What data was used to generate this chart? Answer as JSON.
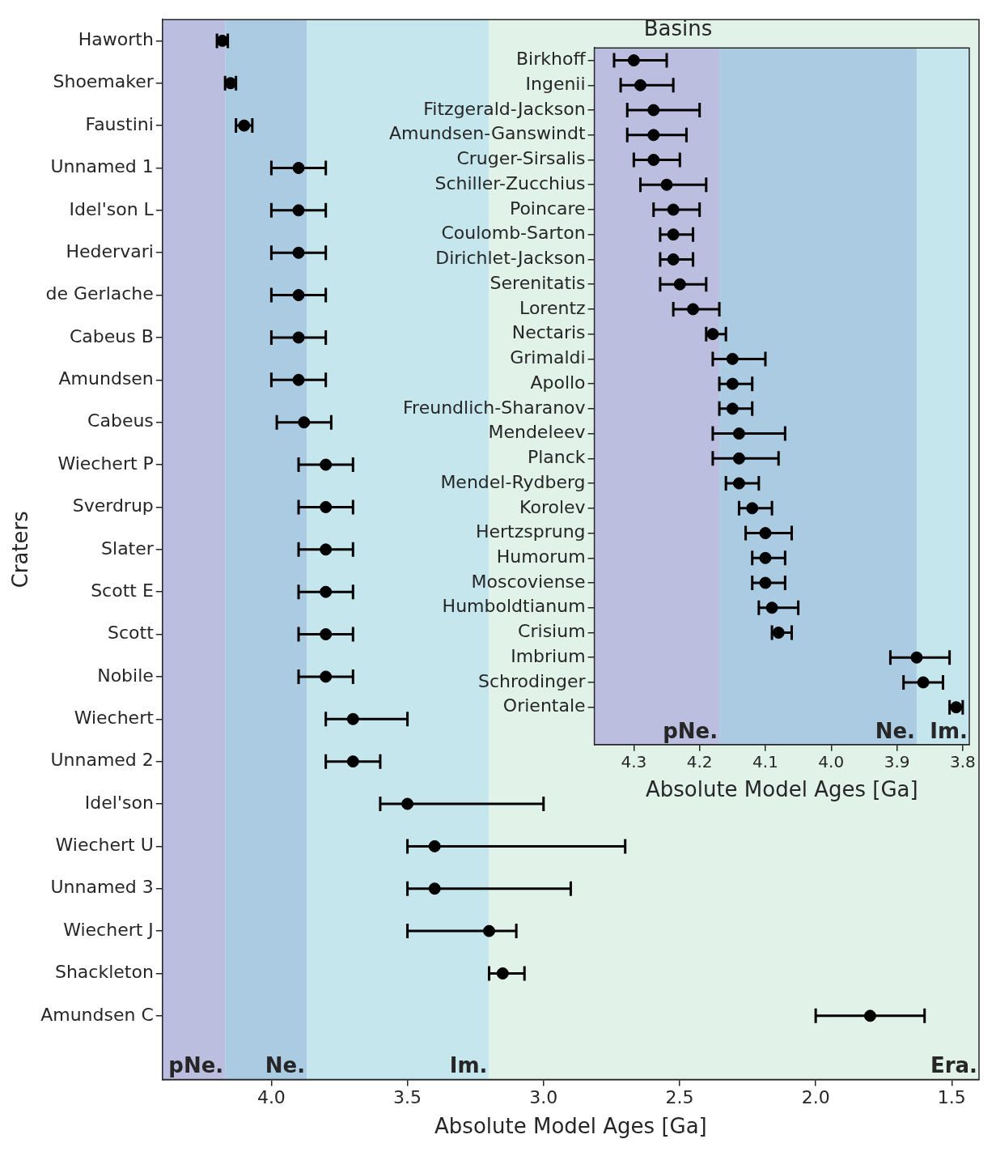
{
  "chart_data": [
    {
      "type": "scatter",
      "orientation": "horizontal",
      "xlabel": "Absolute Model Ages [Ga]",
      "ylabel": "Craters",
      "xlim": [
        4.4,
        1.4
      ],
      "xticks": [
        {
          "value": 4,
          "label": "4.0"
        },
        3.5,
        {
          "value": 3,
          "label": "3.0"
        },
        2.5,
        {
          "value": 2,
          "label": "2.0"
        },
        1.5
      ],
      "categories": [
        "Haworth",
        "Shoemaker",
        "Faustini",
        "Unnamed 1",
        "Idel'son L",
        "Hedervari",
        "de Gerlache",
        "Cabeus B",
        "Amundsen",
        "Cabeus",
        "Wiechert P",
        "Sverdrup",
        "Slater",
        "Scott E",
        "Scott",
        "Nobile",
        "Wiechert",
        "Unnamed 2",
        "Idel'son",
        "Wiechert U",
        "Unnamed 3",
        "Wiechert J",
        "Shackleton",
        "Amundsen C"
      ],
      "bands": [
        {
          "axis": "x",
          "from": 4.4,
          "to": 4.17,
          "label": "pNe.",
          "color": "#bcbedf"
        },
        {
          "axis": "x",
          "from": 4.17,
          "to": 3.87,
          "label": "Ne.",
          "color": "#abcbe2"
        },
        {
          "axis": "x",
          "from": 3.87,
          "to": 3.2,
          "label": "Im.",
          "color": "#c5e6ec"
        },
        {
          "axis": "x",
          "from": 3.2,
          "to": 1.4,
          "label": "Era.",
          "color": "#e1f2e8"
        }
      ],
      "series": [
        {
          "color": "#000000",
          "values": [
            4.18,
            4.15,
            4.1,
            3.9,
            3.9,
            3.9,
            3.9,
            3.9,
            3.9,
            3.88,
            3.8,
            3.8,
            3.8,
            3.8,
            3.8,
            3.8,
            3.7,
            3.7,
            3.5,
            3.4,
            3.4,
            3.2,
            3.15,
            1.8
          ],
          "errors": [
            [
              4.2,
              4.16
            ],
            [
              4.17,
              4.13
            ],
            [
              4.13,
              4.07
            ],
            [
              4.0,
              3.8
            ],
            [
              4.0,
              3.8
            ],
            [
              4.0,
              3.8
            ],
            [
              4.0,
              3.8
            ],
            [
              4.0,
              3.8
            ],
            [
              4.0,
              3.8
            ],
            [
              3.98,
              3.78
            ],
            [
              3.9,
              3.7
            ],
            [
              3.9,
              3.7
            ],
            [
              3.9,
              3.7
            ],
            [
              3.9,
              3.7
            ],
            [
              3.9,
              3.7
            ],
            [
              3.9,
              3.7
            ],
            [
              3.8,
              3.5
            ],
            [
              3.8,
              3.6
            ],
            [
              3.6,
              3.0
            ],
            [
              3.5,
              2.7
            ],
            [
              3.5,
              2.9
            ],
            [
              3.5,
              3.1
            ],
            [
              3.2,
              3.07
            ],
            [
              2.0,
              1.6
            ]
          ]
        }
      ]
    },
    {
      "type": "scatter",
      "orientation": "horizontal",
      "marker": "circle",
      "title": "Basins",
      "xlabel": "Absolute Model Ages [Ga]",
      "xlim": [
        4.36,
        3.79
      ],
      "xticks": [
        4.3,
        4.2,
        4.1,
        {
          "value": 4,
          "label": "4.0"
        },
        3.9,
        3.8
      ],
      "categories": [
        "Birkhoff",
        "Ingenii",
        "Fitzgerald-Jackson",
        "Amundsen-Ganswindt",
        "Cruger-Sirsalis",
        "Schiller-Zucchius",
        "Poincare",
        "Coulomb-Sarton",
        "Dirichlet-Jackson",
        "Serenitatis",
        "Lorentz",
        "Nectaris",
        "Grimaldi",
        "Apollo",
        "Freundlich-Sharanov",
        "Mendeleev",
        "Planck",
        "Mendel-Rydberg",
        "Korolev",
        "Hertzsprung",
        "Humorum",
        "Moscoviense",
        "Humboldtianum",
        "Crisium",
        "Imbrium",
        "Schrodinger",
        "Orientale"
      ],
      "bands": [
        {
          "axis": "x",
          "from": 4.36,
          "to": 4.17,
          "label": "pNe.",
          "color": "#bcbedf"
        },
        {
          "axis": "x",
          "from": 4.17,
          "to": 3.87,
          "label": "Ne.",
          "color": "#abcbe2"
        },
        {
          "axis": "x",
          "from": 3.87,
          "to": 3.79,
          "label": "Im.",
          "color": "#c5e6ec"
        }
      ],
      "series": [
        {
          "color": "#000000",
          "values": [
            4.3,
            4.29,
            4.27,
            4.27,
            4.27,
            4.25,
            4.24,
            4.24,
            4.24,
            4.23,
            4.21,
            4.18,
            4.15,
            4.15,
            4.15,
            4.14,
            4.14,
            4.14,
            4.12,
            4.1,
            4.1,
            4.1,
            4.09,
            4.08,
            3.87,
            3.86,
            3.81
          ],
          "errors": [
            [
              4.33,
              4.25
            ],
            [
              4.32,
              4.24
            ],
            [
              4.31,
              4.2
            ],
            [
              4.31,
              4.22
            ],
            [
              4.3,
              4.23
            ],
            [
              4.29,
              4.19
            ],
            [
              4.27,
              4.2
            ],
            [
              4.26,
              4.21
            ],
            [
              4.26,
              4.21
            ],
            [
              4.26,
              4.19
            ],
            [
              4.24,
              4.17
            ],
            [
              4.19,
              4.16
            ],
            [
              4.18,
              4.1
            ],
            [
              4.17,
              4.12
            ],
            [
              4.17,
              4.12
            ],
            [
              4.18,
              4.07
            ],
            [
              4.18,
              4.08
            ],
            [
              4.16,
              4.11
            ],
            [
              4.14,
              4.09
            ],
            [
              4.13,
              4.06
            ],
            [
              4.12,
              4.07
            ],
            [
              4.12,
              4.07
            ],
            [
              4.11,
              4.05
            ],
            [
              4.09,
              4.06
            ],
            [
              3.91,
              3.82
            ],
            [
              3.89,
              3.83
            ],
            [
              3.82,
              3.8
            ]
          ]
        }
      ]
    }
  ]
}
